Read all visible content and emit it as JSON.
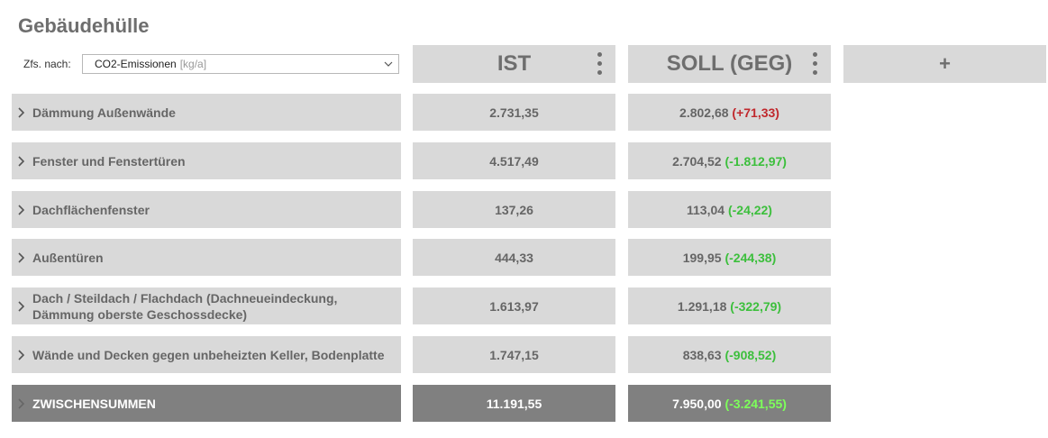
{
  "title": "Gebäudehülle",
  "filter": {
    "label": "Zfs. nach:",
    "value": "CO2-Emissionen",
    "unit": "[kg/a]"
  },
  "columns": {
    "ist": "IST",
    "soll": "SOLL (GEG)",
    "add": "+"
  },
  "rows": [
    {
      "label": "Dämmung Außenwände",
      "ist": "2.731,35",
      "soll": "2.802,68",
      "diff": "(+71,33)",
      "diff_type": "pos"
    },
    {
      "label": "Fenster und Fenstertüren",
      "ist": "4.517,49",
      "soll": "2.704,52",
      "diff": "(-1.812,97)",
      "diff_type": "neg"
    },
    {
      "label": "Dachflächenfenster",
      "ist": "137,26",
      "soll": "113,04",
      "diff": "(-24,22)",
      "diff_type": "neg"
    },
    {
      "label": "Außentüren",
      "ist": "444,33",
      "soll": "199,95",
      "diff": "(-244,38)",
      "diff_type": "neg"
    },
    {
      "label": "Dach / Steildach / Flachdach (Dachneueindeckung, Dämmung oberste Geschossdecke)",
      "ist": "1.613,97",
      "soll": "1.291,18",
      "diff": "(-322,79)",
      "diff_type": "neg"
    },
    {
      "label": "Wände und Decken gegen unbeheizten Keller, Bodenplatte",
      "ist": "1.747,15",
      "soll": "838,63",
      "diff": "(-908,52)",
      "diff_type": "neg"
    }
  ],
  "total": {
    "label": "ZWISCHENSUMMEN",
    "ist": "11.191,55",
    "soll": "7.950,00",
    "diff": "(-3.241,55)"
  },
  "colors": {
    "cell_bg": "#d9d9d9",
    "total_bg": "#808080",
    "positive": "#c0282d",
    "negative": "#3cbf3c"
  }
}
